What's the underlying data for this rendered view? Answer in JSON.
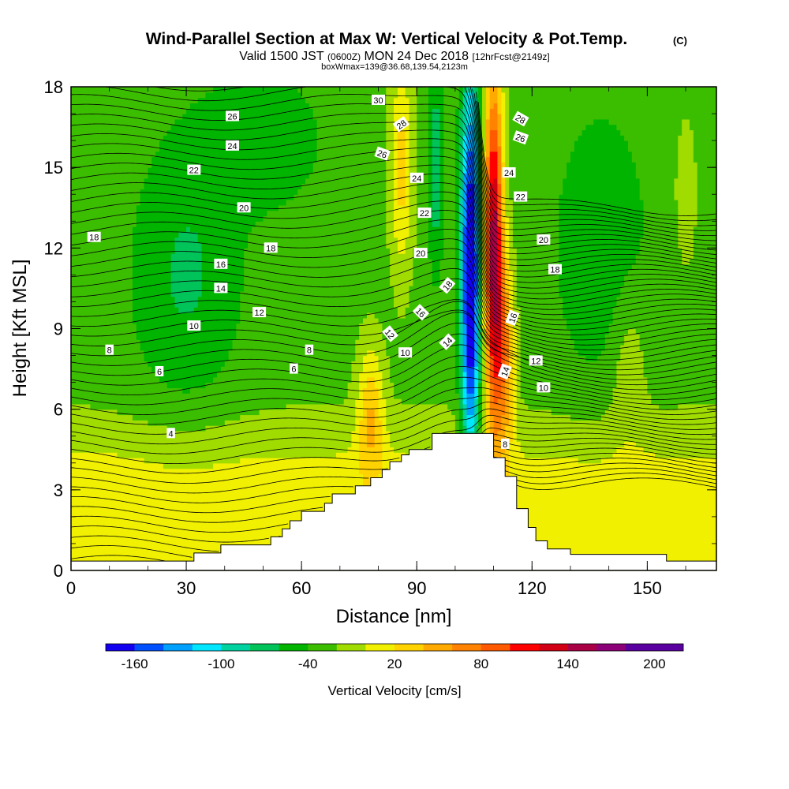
{
  "chart_data": {
    "type": "heatmap",
    "title": "Wind-Parallel Section at Max W: Vertical Velocity & Pot.Temp.",
    "title_mark": "(C)",
    "subtitle": {
      "valid": "Valid 1500 JST",
      "utc": "(0600Z)",
      "date": "MON 24 Dec 2018",
      "fcst": "[12hrFcst@2149z]"
    },
    "box_info": "boxWmax=139@36.68,139.54,2123m",
    "xlabel": "Distance [nm]",
    "ylabel": "Height [Kft MSL]",
    "xlim": [
      0,
      168
    ],
    "ylim": [
      0,
      18
    ],
    "x_ticks": [
      0,
      30,
      60,
      90,
      120,
      150
    ],
    "y_ticks": [
      0,
      3,
      6,
      9,
      12,
      15,
      18
    ],
    "colorbar": {
      "label": "Vertical Velocity [cm/s]",
      "tick_labels": [
        -160,
        -100,
        -40,
        20,
        80,
        140,
        200
      ],
      "levels": [
        -180,
        -160,
        -140,
        -120,
        -100,
        -80,
        -60,
        -40,
        -20,
        0,
        20,
        40,
        60,
        80,
        100,
        120,
        140,
        160,
        180,
        200,
        220
      ],
      "colors": [
        "#1400f0",
        "#0050ff",
        "#00a0ff",
        "#00e6ff",
        "#00d2a0",
        "#00c35a",
        "#00b400",
        "#3cbe00",
        "#a0dc00",
        "#f0f000",
        "#ffd200",
        "#ffaa00",
        "#ff8200",
        "#ff5a00",
        "#ff0000",
        "#d20014",
        "#aa0046",
        "#8c0078",
        "#5a00a0",
        "#5a00a0"
      ]
    },
    "terrain": [
      [
        0,
        0.35
      ],
      [
        32,
        0.35
      ],
      [
        32,
        0.65
      ],
      [
        39,
        0.65
      ],
      [
        39,
        0.95
      ],
      [
        52,
        0.95
      ],
      [
        52,
        1.25
      ],
      [
        55,
        1.25
      ],
      [
        55,
        1.55
      ],
      [
        57,
        1.55
      ],
      [
        57,
        1.85
      ],
      [
        60,
        1.85
      ],
      [
        60,
        2.2
      ],
      [
        66,
        2.2
      ],
      [
        66,
        2.5
      ],
      [
        68,
        2.5
      ],
      [
        68,
        2.85
      ],
      [
        74,
        2.85
      ],
      [
        74,
        3.15
      ],
      [
        78,
        3.15
      ],
      [
        78,
        3.45
      ],
      [
        81,
        3.45
      ],
      [
        81,
        3.75
      ],
      [
        83,
        3.75
      ],
      [
        83,
        4.05
      ],
      [
        86,
        4.05
      ],
      [
        86,
        4.3
      ],
      [
        88,
        4.3
      ],
      [
        88,
        4.5
      ],
      [
        94,
        4.5
      ],
      [
        94,
        5.1
      ],
      [
        103,
        5.1
      ],
      [
        110,
        5.1
      ],
      [
        110,
        4.2
      ],
      [
        113,
        4.2
      ],
      [
        113,
        3.5
      ],
      [
        116,
        3.5
      ],
      [
        116,
        2.3
      ],
      [
        119,
        2.3
      ],
      [
        119,
        1.6
      ],
      [
        121,
        1.6
      ],
      [
        121,
        1.1
      ],
      [
        124,
        1.1
      ],
      [
        124,
        0.8
      ],
      [
        130,
        0.8
      ],
      [
        130,
        0.6
      ],
      [
        155,
        0.6
      ],
      [
        155,
        0.35
      ],
      [
        168,
        0.35
      ]
    ],
    "w_centers": [
      {
        "x": 104,
        "y": 11,
        "sx": 2.5,
        "sy": 7.5,
        "w": -170
      },
      {
        "x": 110,
        "y": 12,
        "sx": 2.4,
        "sy": 6.5,
        "w": 180
      },
      {
        "x": 113,
        "y": 8,
        "sx": 2.5,
        "sy": 3.5,
        "w": 80
      },
      {
        "x": 86,
        "y": 15,
        "sx": 3,
        "sy": 4,
        "w": 55
      },
      {
        "x": 78,
        "y": 6,
        "sx": 3.5,
        "sy": 2.5,
        "w": 60
      },
      {
        "x": 95,
        "y": 15,
        "sx": 2,
        "sy": 4,
        "w": -45
      },
      {
        "x": 30,
        "y": 11,
        "sx": 14,
        "sy": 5,
        "w": -35
      },
      {
        "x": 138,
        "y": 12,
        "sx": 12,
        "sy": 5,
        "w": -30
      },
      {
        "x": 50,
        "y": 16,
        "sx": 15,
        "sy": 2.5,
        "w": -30
      },
      {
        "x": 145,
        "y": 8,
        "sx": 5,
        "sy": 3,
        "w": 25
      },
      {
        "x": 10,
        "y": 2,
        "sx": 10,
        "sy": 2,
        "w": 5
      },
      {
        "x": 160,
        "y": 14,
        "sx": 3,
        "sy": 3,
        "w": 20
      }
    ],
    "isentropes": {
      "levels": [
        2,
        4,
        6,
        8,
        10,
        12,
        14,
        16,
        18,
        20,
        22,
        24,
        26,
        28,
        30
      ],
      "labels": [
        {
          "text": "30",
          "x": 80,
          "y": 17.5,
          "rot": 0
        },
        {
          "text": "26",
          "x": 42,
          "y": 16.9,
          "rot": 0
        },
        {
          "text": "28",
          "x": 86,
          "y": 16.6,
          "rot": -35
        },
        {
          "text": "28",
          "x": 117,
          "y": 16.8,
          "rot": 30
        },
        {
          "text": "26",
          "x": 117,
          "y": 16.1,
          "rot": 20
        },
        {
          "text": "24",
          "x": 42,
          "y": 15.8,
          "rot": 0
        },
        {
          "text": "26",
          "x": 81,
          "y": 15.5,
          "rot": 20
        },
        {
          "text": "24",
          "x": 90,
          "y": 14.6,
          "rot": 0
        },
        {
          "text": "24",
          "x": 114,
          "y": 14.8,
          "rot": 0
        },
        {
          "text": "22",
          "x": 32,
          "y": 14.9,
          "rot": 0
        },
        {
          "text": "22",
          "x": 117,
          "y": 13.9,
          "rot": 0
        },
        {
          "text": "20",
          "x": 45,
          "y": 13.5,
          "rot": 0
        },
        {
          "text": "22",
          "x": 92,
          "y": 13.3,
          "rot": 0
        },
        {
          "text": "18",
          "x": 6,
          "y": 12.4,
          "rot": 0
        },
        {
          "text": "20",
          "x": 123,
          "y": 12.3,
          "rot": 0
        },
        {
          "text": "18",
          "x": 52,
          "y": 12.0,
          "rot": 0
        },
        {
          "text": "20",
          "x": 91,
          "y": 11.8,
          "rot": 0
        },
        {
          "text": "18",
          "x": 126,
          "y": 11.2,
          "rot": 0
        },
        {
          "text": "16",
          "x": 39,
          "y": 11.4,
          "rot": 0
        },
        {
          "text": "18",
          "x": 98,
          "y": 10.6,
          "rot": -50
        },
        {
          "text": "14",
          "x": 39,
          "y": 10.5,
          "rot": 0
        },
        {
          "text": "16",
          "x": 91,
          "y": 9.6,
          "rot": 45
        },
        {
          "text": "12",
          "x": 49,
          "y": 9.6,
          "rot": 0
        },
        {
          "text": "16",
          "x": 115,
          "y": 9.4,
          "rot": -70
        },
        {
          "text": "10",
          "x": 32,
          "y": 9.1,
          "rot": 0
        },
        {
          "text": "12",
          "x": 83,
          "y": 8.8,
          "rot": 50
        },
        {
          "text": "14",
          "x": 98,
          "y": 8.5,
          "rot": -45
        },
        {
          "text": "8",
          "x": 10,
          "y": 8.2,
          "rot": 0
        },
        {
          "text": "8",
          "x": 62,
          "y": 8.2,
          "rot": 0
        },
        {
          "text": "10",
          "x": 87,
          "y": 8.1,
          "rot": 0
        },
        {
          "text": "12",
          "x": 121,
          "y": 7.8,
          "rot": 0
        },
        {
          "text": "14",
          "x": 113,
          "y": 7.4,
          "rot": -70
        },
        {
          "text": "6",
          "x": 23,
          "y": 7.4,
          "rot": 0
        },
        {
          "text": "6",
          "x": 58,
          "y": 7.5,
          "rot": 0
        },
        {
          "text": "10",
          "x": 123,
          "y": 6.8,
          "rot": 0
        },
        {
          "text": "4",
          "x": 26,
          "y": 5.1,
          "rot": 0
        },
        {
          "text": "8",
          "x": 113,
          "y": 4.7,
          "rot": 0
        }
      ]
    }
  }
}
